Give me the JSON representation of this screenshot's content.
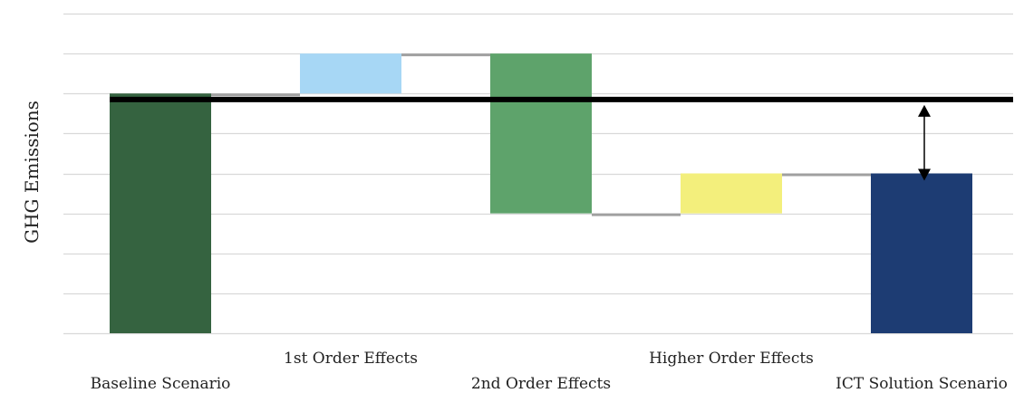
{
  "chart_data": {
    "type": "waterfall",
    "ylabel": "GHG Emissions",
    "ylim": [
      0,
      8
    ],
    "grid": true,
    "gridlines": [
      0,
      1,
      2,
      3,
      4,
      5,
      6,
      7,
      8
    ],
    "categories": [
      "Baseline Scenario",
      "1st Order Effects",
      "2nd Order Effects",
      "Higher Order Effects",
      "ICT Solution Scenario"
    ],
    "bars": [
      {
        "category": "Baseline Scenario",
        "kind": "total",
        "start": 0,
        "end": 6,
        "color": "#356340"
      },
      {
        "category": "1st Order Effects",
        "kind": "increase",
        "start": 6,
        "end": 7,
        "color": "#a7d7f5"
      },
      {
        "category": "2nd Order Effects",
        "kind": "decrease",
        "start": 7,
        "end": 3,
        "color": "#5ea36b"
      },
      {
        "category": "Higher Order Effects",
        "kind": "increase",
        "start": 3,
        "end": 4,
        "color": "#f3ef7c"
      },
      {
        "category": "ICT Solution Scenario",
        "kind": "total",
        "start": 0,
        "end": 4,
        "color": "#1d3c73"
      }
    ],
    "baseline_reference": {
      "value": 5.85,
      "color": "#000000"
    },
    "difference_arrow": {
      "from": 5.85,
      "to": 4,
      "category": "ICT Solution Scenario"
    },
    "connector_color": "#a0a0a0",
    "grid_color": "#d9d9d9"
  }
}
